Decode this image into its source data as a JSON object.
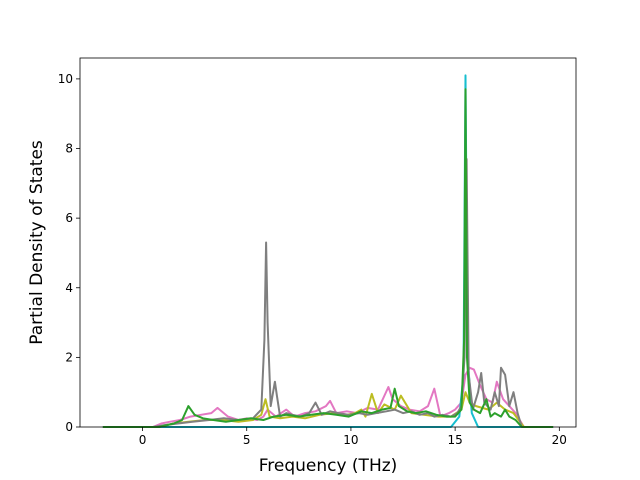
{
  "chart_data": {
    "type": "line",
    "title": "",
    "xlabel": "Frequency (THz)",
    "ylabel": "Partial Density of States",
    "xlim": [
      -3.0,
      20.8
    ],
    "ylim": [
      0,
      10.6
    ],
    "x_ticks": [
      0,
      5,
      10,
      15,
      20
    ],
    "y_ticks": [
      0,
      2,
      4,
      6,
      8,
      10
    ],
    "x_tick_labels": [
      "0",
      "5",
      "10",
      "15",
      "20"
    ],
    "y_tick_labels": [
      "0",
      "2",
      "4",
      "6",
      "8",
      "10"
    ],
    "grid": false,
    "legend": "none",
    "series": [
      {
        "color": "#e377c2",
        "x": [
          -1.9,
          0.5,
          0.9,
          1.3,
          1.8,
          2.3,
          2.8,
          3.3,
          3.6,
          4.1,
          4.6,
          5.0,
          5.5,
          5.8,
          6.0,
          6.4,
          6.9,
          7.3,
          7.8,
          8.3,
          8.8,
          9.0,
          9.3,
          9.8,
          10.3,
          10.8,
          11.3,
          11.8,
          12.0,
          12.4,
          12.8,
          13.3,
          13.7,
          14.0,
          14.3,
          14.7,
          15.0,
          15.3,
          15.5,
          15.7,
          15.9,
          16.2,
          16.5,
          16.8,
          17.0,
          17.3,
          17.6,
          17.9,
          18.3,
          19.7
        ],
        "y": [
          0,
          0,
          0.1,
          0.15,
          0.2,
          0.3,
          0.35,
          0.4,
          0.55,
          0.3,
          0.2,
          0.25,
          0.2,
          0.3,
          0.5,
          0.3,
          0.5,
          0.3,
          0.4,
          0.45,
          0.6,
          0.75,
          0.4,
          0.45,
          0.4,
          0.55,
          0.5,
          1.15,
          0.8,
          0.6,
          0.5,
          0.45,
          0.6,
          1.1,
          0.3,
          0.4,
          0.5,
          0.7,
          1.5,
          1.7,
          1.65,
          1.2,
          0.8,
          0.7,
          1.3,
          0.8,
          0.6,
          0.4,
          0.0,
          0
        ]
      },
      {
        "color": "#bcbd22",
        "x": [
          -1.9,
          0.7,
          1.5,
          2.2,
          3.0,
          3.8,
          4.6,
          5.3,
          5.7,
          5.9,
          6.1,
          6.6,
          7.2,
          7.8,
          8.5,
          9.2,
          9.8,
          10.2,
          10.5,
          10.7,
          11.0,
          11.3,
          11.6,
          12.1,
          12.4,
          12.9,
          13.5,
          14.2,
          14.8,
          15.3,
          15.5,
          15.7,
          16.0,
          16.6,
          17.0,
          17.4,
          17.8,
          18.3,
          19.7
        ],
        "y": [
          0,
          0,
          0.1,
          0.15,
          0.2,
          0.2,
          0.15,
          0.2,
          0.35,
          0.8,
          0.3,
          0.25,
          0.3,
          0.25,
          0.35,
          0.4,
          0.35,
          0.4,
          0.5,
          0.3,
          0.95,
          0.4,
          0.65,
          0.5,
          0.9,
          0.4,
          0.35,
          0.3,
          0.3,
          0.5,
          1.0,
          0.7,
          0.6,
          0.5,
          0.7,
          0.5,
          0.4,
          0.0,
          0
        ]
      },
      {
        "color": "#17becf",
        "x": [
          -1.9,
          14.8,
          15.2,
          15.4,
          15.5,
          15.6,
          15.8,
          16.1,
          19.7
        ],
        "y": [
          0,
          0,
          0.3,
          1.5,
          10.1,
          2.0,
          0.4,
          0.0,
          0
        ]
      },
      {
        "color": "#7f7f7f",
        "x": [
          -1.9,
          0.5,
          1.0,
          1.7,
          2.4,
          3.2,
          3.9,
          4.6,
          5.3,
          5.7,
          5.85,
          5.93,
          6.0,
          6.15,
          6.35,
          6.45,
          6.6,
          6.9,
          7.2,
          7.6,
          8.0,
          8.3,
          8.6,
          9.0,
          9.4,
          9.9,
          10.4,
          10.8,
          11.2,
          11.7,
          12.1,
          12.5,
          12.9,
          13.3,
          13.7,
          14.0,
          14.4,
          14.8,
          15.1,
          15.3,
          15.45,
          15.55,
          15.65,
          15.85,
          16.1,
          16.25,
          16.4,
          16.7,
          16.9,
          17.1,
          17.2,
          17.4,
          17.6,
          17.8,
          18.0,
          18.2,
          19.7
        ],
        "y": [
          0,
          0,
          0.05,
          0.1,
          0.15,
          0.2,
          0.25,
          0.2,
          0.25,
          0.5,
          2.5,
          5.3,
          3.0,
          0.6,
          1.3,
          0.9,
          0.3,
          0.4,
          0.35,
          0.3,
          0.4,
          0.7,
          0.35,
          0.45,
          0.4,
          0.35,
          0.4,
          0.35,
          0.4,
          0.45,
          0.5,
          0.4,
          0.45,
          0.35,
          0.4,
          0.3,
          0.35,
          0.3,
          0.4,
          0.6,
          2.0,
          7.7,
          1.5,
          0.5,
          1.0,
          1.55,
          0.7,
          0.5,
          1.0,
          0.6,
          1.7,
          1.5,
          0.6,
          1.0,
          0.4,
          0.0,
          0
        ]
      },
      {
        "color": "#2ca02c",
        "x": [
          -1.9,
          0.8,
          1.5,
          1.9,
          2.2,
          2.5,
          2.9,
          3.4,
          4.0,
          4.6,
          5.2,
          5.8,
          6.3,
          6.9,
          7.5,
          8.1,
          8.7,
          9.3,
          9.9,
          10.5,
          11.0,
          11.5,
          11.9,
          12.1,
          12.3,
          12.7,
          13.1,
          13.6,
          14.1,
          14.6,
          15.0,
          15.3,
          15.43,
          15.5,
          15.57,
          15.7,
          15.9,
          16.2,
          16.5,
          16.7,
          16.9,
          17.2,
          17.4,
          17.6,
          17.9,
          18.2,
          19.7
        ],
        "y": [
          0,
          0,
          0.1,
          0.2,
          0.6,
          0.35,
          0.25,
          0.2,
          0.15,
          0.2,
          0.25,
          0.2,
          0.3,
          0.35,
          0.3,
          0.35,
          0.4,
          0.35,
          0.3,
          0.45,
          0.4,
          0.5,
          0.55,
          1.1,
          0.6,
          0.45,
          0.4,
          0.45,
          0.35,
          0.3,
          0.3,
          0.5,
          2.5,
          9.7,
          2.0,
          0.7,
          0.5,
          0.4,
          0.8,
          0.3,
          0.4,
          0.3,
          0.5,
          0.3,
          0.2,
          0.0,
          0
        ]
      }
    ]
  }
}
